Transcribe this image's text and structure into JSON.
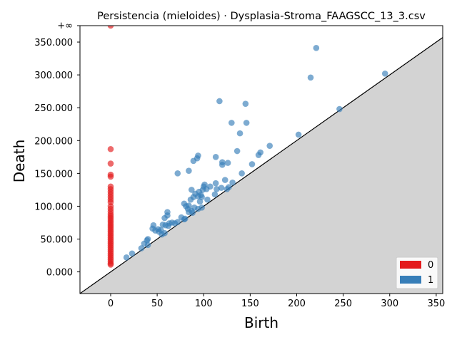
{
  "chart_data": {
    "type": "scatter",
    "title": "Persistencia (mieloides) · Dysplasia-Stroma_FAAGSCC_13_3.csv",
    "xlabel": "Birth",
    "ylabel": "Death",
    "xlim": [
      -33,
      357
    ],
    "ylim": [
      -33,
      375
    ],
    "x_ticks": [
      0,
      50,
      100,
      150,
      200,
      250,
      300,
      350
    ],
    "x_tick_labels": [
      "0",
      "50",
      "100",
      "150",
      "200",
      "250",
      "300",
      "350"
    ],
    "y_ticks": [
      0,
      50,
      100,
      150,
      200,
      250,
      300,
      350
    ],
    "y_tick_labels": [
      "0.000",
      "50.000",
      "100.000",
      "150.000",
      "200.000",
      "250.000",
      "300.000",
      "350.000"
    ],
    "infinity_label": "+∞",
    "infinity_y": 375,
    "diagonal": true,
    "legend_position": "bottom-right",
    "colors": {
      "h0": "#e41a1c",
      "h1": "#377eb8",
      "shade": "#d3d3d3",
      "infinity_line": "#808080"
    },
    "series": [
      {
        "name": "0",
        "color": "#e41a1c",
        "points": [
          [
            0,
            375
          ],
          [
            0,
            187
          ],
          [
            0,
            165
          ],
          [
            0,
            148
          ],
          [
            0,
            145
          ],
          [
            0,
            130
          ],
          [
            0,
            126
          ],
          [
            0,
            122
          ],
          [
            0,
            118
          ],
          [
            0,
            114
          ],
          [
            0,
            110
          ],
          [
            0,
            106
          ],
          [
            0,
            100
          ],
          [
            0,
            96
          ],
          [
            0,
            92
          ],
          [
            0,
            88
          ],
          [
            0,
            85
          ],
          [
            0,
            82
          ],
          [
            0,
            79
          ],
          [
            0,
            76
          ],
          [
            0,
            73
          ],
          [
            0,
            70
          ],
          [
            0,
            67
          ],
          [
            0,
            64
          ],
          [
            0,
            61
          ],
          [
            0,
            58
          ],
          [
            0,
            55
          ],
          [
            0,
            52
          ],
          [
            0,
            49
          ],
          [
            0,
            46
          ],
          [
            0,
            43
          ],
          [
            0,
            40
          ],
          [
            0,
            37
          ],
          [
            0,
            34
          ],
          [
            0,
            31
          ],
          [
            0,
            28
          ],
          [
            0,
            25
          ],
          [
            0,
            22
          ],
          [
            0,
            19
          ],
          [
            0,
            16
          ],
          [
            0,
            13
          ],
          [
            0,
            11
          ]
        ]
      },
      {
        "name": "1",
        "color": "#377eb8",
        "points": [
          [
            221,
            341
          ],
          [
            295,
            302
          ],
          [
            215,
            296
          ],
          [
            117,
            260
          ],
          [
            145,
            256
          ],
          [
            246,
            248
          ],
          [
            130,
            227
          ],
          [
            146,
            227
          ],
          [
            139,
            211
          ],
          [
            202,
            209
          ],
          [
            171,
            192
          ],
          [
            136,
            184
          ],
          [
            161,
            182
          ],
          [
            159,
            178
          ],
          [
            94,
            177
          ],
          [
            93,
            173
          ],
          [
            113,
            175
          ],
          [
            89,
            169
          ],
          [
            120,
            167
          ],
          [
            126,
            166
          ],
          [
            120,
            163
          ],
          [
            152,
            164
          ],
          [
            84,
            154
          ],
          [
            72,
            150
          ],
          [
            141,
            150
          ],
          [
            123,
            140
          ],
          [
            131,
            136
          ],
          [
            113,
            135
          ],
          [
            101,
            133
          ],
          [
            100,
            130
          ],
          [
            107,
            130
          ],
          [
            119,
            128
          ],
          [
            127,
            129
          ],
          [
            103,
            126
          ],
          [
            114,
            126
          ],
          [
            99,
            125
          ],
          [
            87,
            125
          ],
          [
            125,
            126
          ],
          [
            95,
            122
          ],
          [
            91,
            119
          ],
          [
            97,
            117
          ],
          [
            112,
            118
          ],
          [
            94,
            115
          ],
          [
            98,
            114
          ],
          [
            89,
            114
          ],
          [
            104,
            110
          ],
          [
            86,
            110
          ],
          [
            96,
            107
          ],
          [
            79,
            104
          ],
          [
            81,
            100
          ],
          [
            84,
            101
          ],
          [
            90,
            98
          ],
          [
            98,
            98
          ],
          [
            83,
            96
          ],
          [
            94,
            96
          ],
          [
            87,
            93
          ],
          [
            84,
            91
          ],
          [
            88,
            90
          ],
          [
            61,
            91
          ],
          [
            61,
            86
          ],
          [
            58,
            82
          ],
          [
            76,
            83
          ],
          [
            80,
            81
          ],
          [
            79,
            80
          ],
          [
            72,
            76
          ],
          [
            66,
            75
          ],
          [
            69,
            74
          ],
          [
            63,
            74
          ],
          [
            56,
            72
          ],
          [
            59,
            71
          ],
          [
            46,
            71
          ],
          [
            62,
            70
          ],
          [
            45,
            66
          ],
          [
            51,
            65
          ],
          [
            54,
            64
          ],
          [
            48,
            63
          ],
          [
            52,
            61
          ],
          [
            58,
            59
          ],
          [
            55,
            57
          ],
          [
            40,
            50
          ],
          [
            39,
            48
          ],
          [
            36,
            43
          ],
          [
            40,
            41
          ],
          [
            33,
            36
          ],
          [
            23,
            28
          ],
          [
            17,
            22
          ]
        ]
      }
    ]
  }
}
